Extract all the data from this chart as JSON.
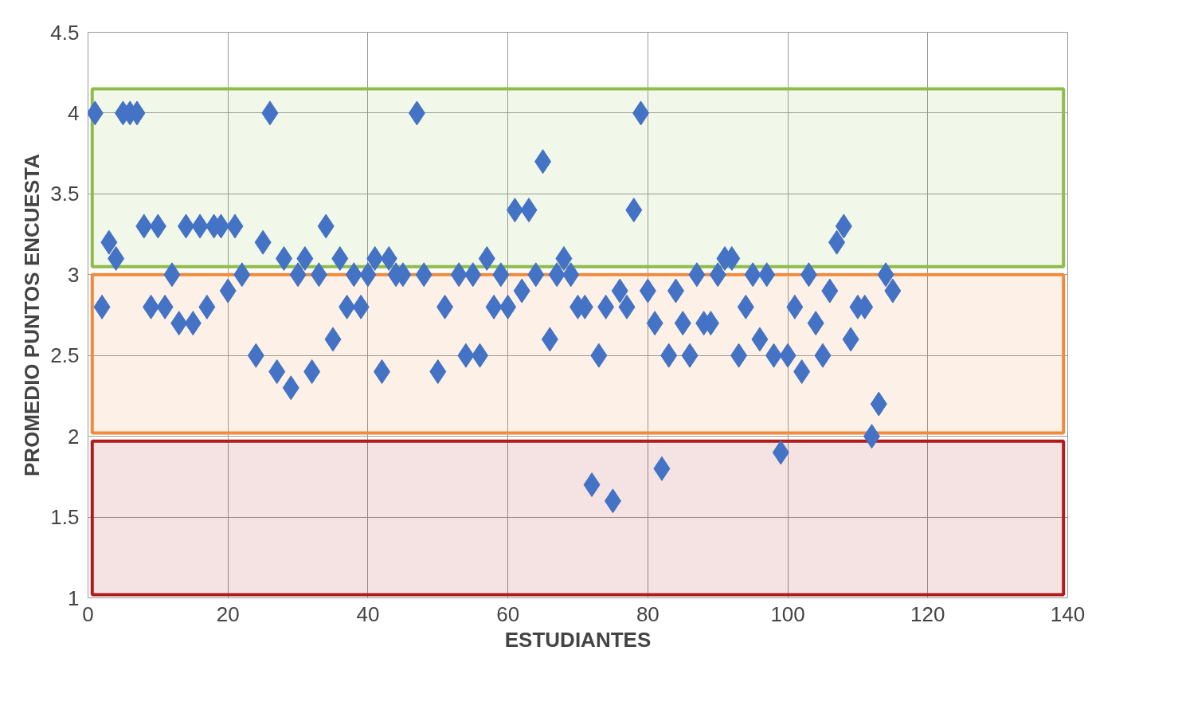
{
  "chart_data": {
    "type": "scatter",
    "xlabel": "ESTUDIANTES",
    "ylabel": "PROMEDIO PUNTOS ENCUESTA",
    "xlim": [
      0,
      140
    ],
    "xticks": [
      0,
      20,
      40,
      60,
      80,
      100,
      120,
      140
    ],
    "ylim": [
      1,
      4.5
    ],
    "yticks": [
      1,
      1.5,
      2,
      2.5,
      3,
      3.5,
      4,
      4.5
    ],
    "grid": true,
    "marker": "diamond",
    "bands": [
      {
        "axis": "y",
        "from": 3.05,
        "to": 4.15,
        "color": "#8fbc4a"
      },
      {
        "axis": "y",
        "from": 2.02,
        "to": 3.0,
        "color": "#f08a3c"
      },
      {
        "axis": "y",
        "from": 1.02,
        "to": 1.97,
        "color": "#b01c1c"
      }
    ],
    "series": [
      {
        "color": "#4472c4",
        "x": [
          1,
          2,
          3,
          4,
          5,
          6,
          7,
          8,
          9,
          10,
          11,
          12,
          13,
          14,
          15,
          16,
          17,
          18,
          19,
          20,
          21,
          22,
          24,
          25,
          26,
          27,
          28,
          29,
          30,
          31,
          32,
          33,
          34,
          35,
          36,
          37,
          38,
          39,
          40,
          41,
          42,
          43,
          44,
          45,
          47,
          48,
          50,
          51,
          53,
          54,
          55,
          56,
          57,
          58,
          59,
          60,
          61,
          62,
          63,
          64,
          65,
          66,
          67,
          68,
          69,
          70,
          71,
          72,
          73,
          74,
          75,
          76,
          77,
          78,
          79,
          80,
          81,
          82,
          83,
          84,
          85,
          86,
          87,
          88,
          89,
          90,
          91,
          92,
          93,
          94,
          95,
          96,
          97,
          98,
          99,
          100,
          101,
          102,
          103,
          104,
          105,
          106,
          107,
          108,
          109,
          110,
          111,
          112,
          113,
          114,
          115
        ],
        "values": [
          4,
          2.8,
          3.2,
          3.1,
          4,
          4,
          4,
          3.3,
          2.8,
          3.3,
          2.8,
          3.0,
          2.7,
          3.3,
          2.7,
          3.3,
          2.8,
          3.3,
          3.3,
          2.9,
          3.3,
          3.0,
          2.5,
          3.2,
          4,
          2.4,
          3.1,
          2.3,
          3.0,
          3.1,
          2.4,
          3.0,
          3.3,
          2.6,
          3.1,
          2.8,
          3.0,
          2.8,
          3.0,
          3.1,
          2.4,
          3.1,
          3.0,
          3.0,
          4,
          3.0,
          2.4,
          2.8,
          3.0,
          2.5,
          3.0,
          2.5,
          3.1,
          2.8,
          3.0,
          2.8,
          3.4,
          2.9,
          3.4,
          3.0,
          3.7,
          2.6,
          3.0,
          3.1,
          3.0,
          2.8,
          2.8,
          1.7,
          2.5,
          2.8,
          1.6,
          2.9,
          2.8,
          3.4,
          4,
          2.9,
          2.7,
          1.8,
          2.5,
          2.9,
          2.7,
          2.5,
          3.0,
          2.7,
          2.7,
          3.0,
          3.1,
          3.1,
          2.5,
          2.8,
          3.0,
          2.6,
          3.0,
          2.5,
          1.9,
          2.5,
          2.8,
          2.4,
          3.0,
          2.7,
          2.5,
          2.9,
          3.2,
          3.3,
          2.6,
          2.8,
          2.8,
          2.0,
          2.2,
          3.0,
          2.9
        ]
      }
    ]
  }
}
